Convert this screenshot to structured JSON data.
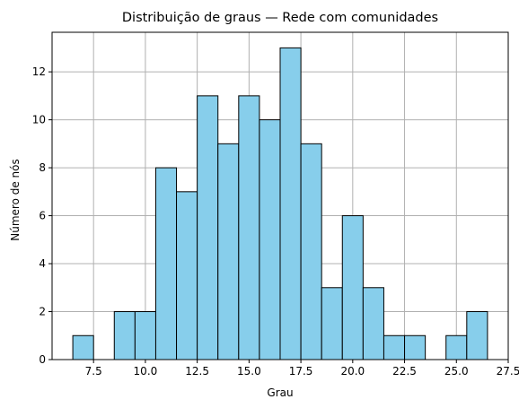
{
  "chart_data": {
    "type": "bar",
    "title": "Distribuição de graus — Rede com comunidades",
    "xlabel": "Grau",
    "ylabel": "Número de nós",
    "xlim": [
      5.5,
      27.5
    ],
    "ylim": [
      0,
      13.65
    ],
    "xticks": [
      7.5,
      10.0,
      12.5,
      15.0,
      17.5,
      20.0,
      22.5,
      25.0,
      27.5
    ],
    "yticks": [
      0,
      2,
      4,
      6,
      8,
      10,
      12
    ],
    "grid": true,
    "bar_color": "#87ceeb",
    "edge_color": "#000000",
    "bins": [
      {
        "left": 6.5,
        "right": 7.5,
        "count": 1
      },
      {
        "left": 7.5,
        "right": 8.5,
        "count": 0
      },
      {
        "left": 8.5,
        "right": 9.5,
        "count": 2
      },
      {
        "left": 9.5,
        "right": 10.5,
        "count": 2
      },
      {
        "left": 10.5,
        "right": 11.5,
        "count": 8
      },
      {
        "left": 11.5,
        "right": 12.5,
        "count": 7
      },
      {
        "left": 12.5,
        "right": 13.5,
        "count": 11
      },
      {
        "left": 13.5,
        "right": 14.5,
        "count": 9
      },
      {
        "left": 14.5,
        "right": 15.5,
        "count": 11
      },
      {
        "left": 15.5,
        "right": 16.5,
        "count": 10
      },
      {
        "left": 16.5,
        "right": 17.5,
        "count": 13
      },
      {
        "left": 17.5,
        "right": 18.5,
        "count": 9
      },
      {
        "left": 18.5,
        "right": 19.5,
        "count": 3
      },
      {
        "left": 19.5,
        "right": 20.5,
        "count": 6
      },
      {
        "left": 20.5,
        "right": 21.5,
        "count": 3
      },
      {
        "left": 21.5,
        "right": 22.5,
        "count": 1
      },
      {
        "left": 22.5,
        "right": 23.5,
        "count": 1
      },
      {
        "left": 23.5,
        "right": 24.5,
        "count": 0
      },
      {
        "left": 24.5,
        "right": 25.5,
        "count": 1
      },
      {
        "left": 25.5,
        "right": 26.5,
        "count": 2
      }
    ]
  }
}
